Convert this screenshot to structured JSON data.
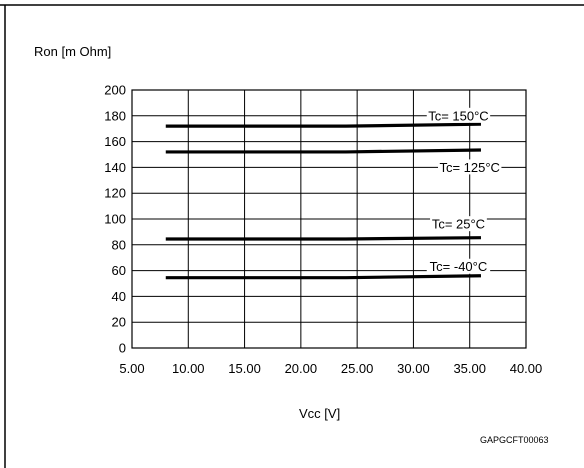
{
  "chart_data": {
    "type": "line",
    "title": "",
    "xlabel": "Vcc [V]",
    "ylabel": "Ron [m Ohm]",
    "xlim": [
      5,
      40
    ],
    "ylim": [
      0,
      200
    ],
    "x_ticks": [
      5,
      10,
      15,
      20,
      25,
      30,
      35,
      40
    ],
    "x_tick_labels": [
      "5.00",
      "10.00",
      "15.00",
      "20.00",
      "25.00",
      "30.00",
      "35.00",
      "40.00"
    ],
    "y_ticks": [
      0,
      20,
      40,
      60,
      80,
      100,
      120,
      140,
      160,
      180,
      200
    ],
    "y_tick_labels": [
      "0",
      "20",
      "40",
      "60",
      "80",
      "100",
      "120",
      "140",
      "160",
      "180",
      "200"
    ],
    "grid": true,
    "series": [
      {
        "name": "Tc= 150°C",
        "x": [
          8,
          24,
          36
        ],
        "y": [
          172,
          172,
          173.5
        ]
      },
      {
        "name": "Tc= 125°C",
        "x": [
          8,
          24,
          36
        ],
        "y": [
          152,
          152,
          153.5
        ]
      },
      {
        "name": "Tc= 25°C",
        "x": [
          8,
          24,
          36
        ],
        "y": [
          84.5,
          84.5,
          85.5
        ]
      },
      {
        "name": "Tc= -40°C",
        "x": [
          8,
          24,
          36
        ],
        "y": [
          54.5,
          54.5,
          56
        ]
      }
    ],
    "annotations": [
      {
        "text": "Tc= 150°C",
        "x": 34,
        "y": 180
      },
      {
        "text": "Tc= 125°C",
        "x": 35,
        "y": 140
      },
      {
        "text": "Tc= 25°C",
        "x": 34,
        "y": 96
      },
      {
        "text": "Tc= -40°C",
        "x": 34,
        "y": 63
      }
    ],
    "figure_code": "GAPGCFT00063",
    "colors": {
      "lines": "#000000",
      "grid": "#000000"
    }
  }
}
